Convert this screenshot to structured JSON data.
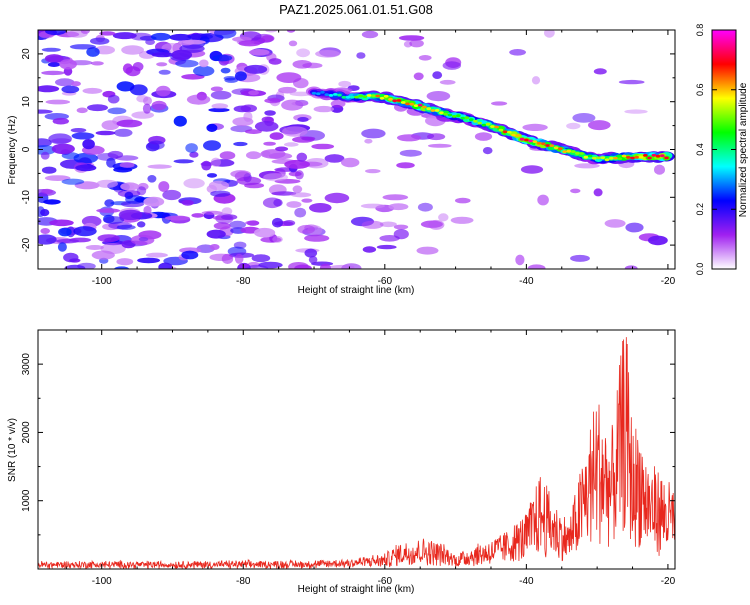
{
  "figure_title": "PAZ1.2025.061.01.51.G08",
  "chart_data": [
    {
      "type": "heatmap",
      "title": "PAZ1.2025.061.01.51.G08",
      "xlabel": "Height of straight line (km)",
      "ylabel": "Frequency (Hz)",
      "xlim": [
        -109,
        -19
      ],
      "ylim": [
        -25,
        25
      ],
      "x_ticks": [
        -100,
        -80,
        -60,
        -40,
        -20
      ],
      "y_ticks": [
        -20,
        -10,
        0,
        10,
        20
      ],
      "colorbar": {
        "label": "Normalized spectral amplitude",
        "range": [
          0,
          0.8
        ],
        "ticks": [
          0.0,
          0.2,
          0.4,
          0.6,
          0.8
        ],
        "colors": [
          "#ffffff",
          "#a020f0",
          "#0000ff",
          "#00ffff",
          "#00ff00",
          "#ffff00",
          "#ff0000",
          "#ff00ff"
        ]
      },
      "ridge": {
        "x": [
          -70,
          -65,
          -60,
          -55,
          -50,
          -45,
          -40,
          -35,
          -30,
          -25,
          -20
        ],
        "y": [
          12,
          11,
          11,
          9,
          7,
          5,
          2,
          0,
          -2,
          -1.5,
          -1.5
        ],
        "amplitude": [
          0.3,
          0.45,
          0.7,
          0.75,
          0.55,
          0.6,
          0.8,
          0.65,
          0.55,
          0.7,
          0.8
        ]
      },
      "grid": false
    },
    {
      "type": "line",
      "xlabel": "Height of straight line (km)",
      "ylabel": "SNR (10 * v/v)",
      "xlim": [
        -109,
        -19
      ],
      "ylim": [
        0,
        3500
      ],
      "x_ticks": [
        -100,
        -80,
        -60,
        -40,
        -20
      ],
      "y_ticks": [
        1000,
        2000,
        3000
      ],
      "line_color": "#e8281e",
      "envelope": {
        "x": [
          -109,
          -90,
          -70,
          -65,
          -60,
          -58,
          -55,
          -52,
          -50,
          -48,
          -45,
          -43,
          -40,
          -38,
          -36,
          -34,
          -32,
          -30,
          -28,
          -26,
          -25,
          -24,
          -23,
          -21,
          -19
        ],
        "y": [
          100,
          100,
          110,
          140,
          200,
          350,
          420,
          350,
          200,
          300,
          400,
          500,
          750,
          1300,
          900,
          650,
          1500,
          2400,
          1800,
          3400,
          1900,
          2000,
          1500,
          1300,
          1100
        ]
      },
      "grid": false
    }
  ]
}
